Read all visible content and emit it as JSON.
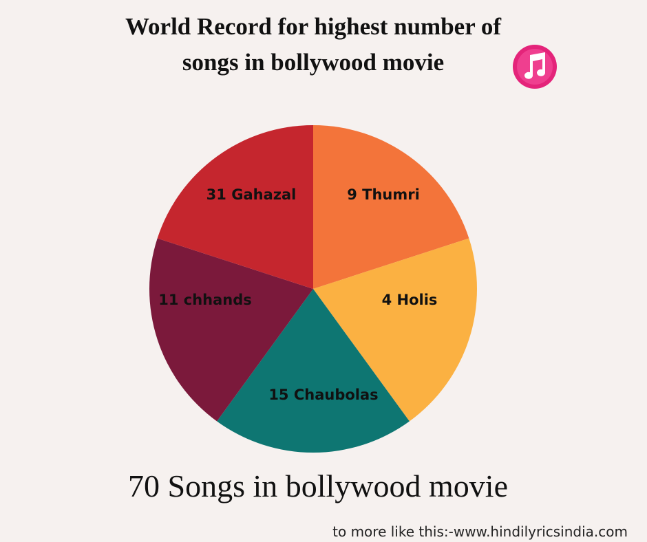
{
  "header": {
    "title_line1": "World Record for highest number of",
    "title_line2": "songs in bollywood movie"
  },
  "slices": [
    {
      "label": "9 Thumri",
      "color": "#f3743a"
    },
    {
      "label": "4 Holis",
      "color": "#fbb142"
    },
    {
      "label": "15 Chaubolas",
      "color": "#0e7672"
    },
    {
      "label": "11 chhands",
      "color": "#7b193b"
    },
    {
      "label": "31 Gahazal",
      "color": "#c5262e"
    }
  ],
  "subtitle": "70 Songs in bollywood movie",
  "footer": "to more like this:-www.hindilyricsindia.com"
}
